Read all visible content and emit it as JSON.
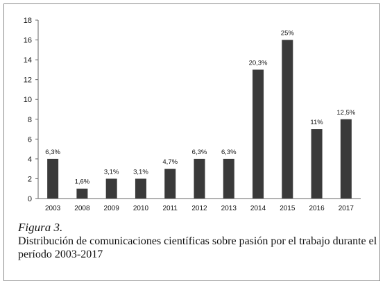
{
  "chart_data": {
    "type": "bar",
    "categories": [
      "2003",
      "2008",
      "2009",
      "2010",
      "2011",
      "2012",
      "2013",
      "2014",
      "2015",
      "2016",
      "2017"
    ],
    "values": [
      4,
      1,
      2,
      2,
      3,
      4,
      4,
      13,
      16,
      7,
      8
    ],
    "data_labels": [
      "6,3%",
      "1,6%",
      "3,1%",
      "3,1%",
      "4,7%",
      "6,3%",
      "6,3%",
      "20,3%",
      "25%",
      "11%",
      "12,5%"
    ],
    "ylim": [
      0,
      18
    ],
    "yticks": [
      0,
      2,
      4,
      6,
      8,
      10,
      12,
      14,
      16,
      18
    ],
    "bar_color": "#3a3a3a",
    "grid": false,
    "legend": false
  },
  "caption": {
    "figure": "Figura 3.",
    "text": "Distribución de comunicaciones científicas sobre pasión por el trabajo durante el período 2003-2017"
  }
}
